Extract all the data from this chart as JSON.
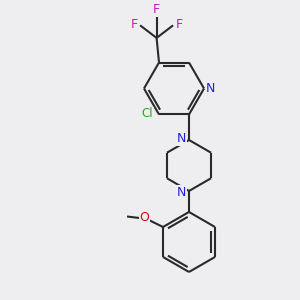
{
  "bg_color": "#eeeef0",
  "bond_color": "#2a2a2a",
  "nitrogen_color": "#2020dd",
  "oxygen_color": "#cc1111",
  "chlorine_color": "#22aa22",
  "fluorine_color": "#cc11cc",
  "lw": 1.5,
  "figsize": [
    3.0,
    3.0
  ],
  "dpi": 100,
  "xlim": [
    0,
    10
  ],
  "ylim": [
    0,
    10
  ]
}
